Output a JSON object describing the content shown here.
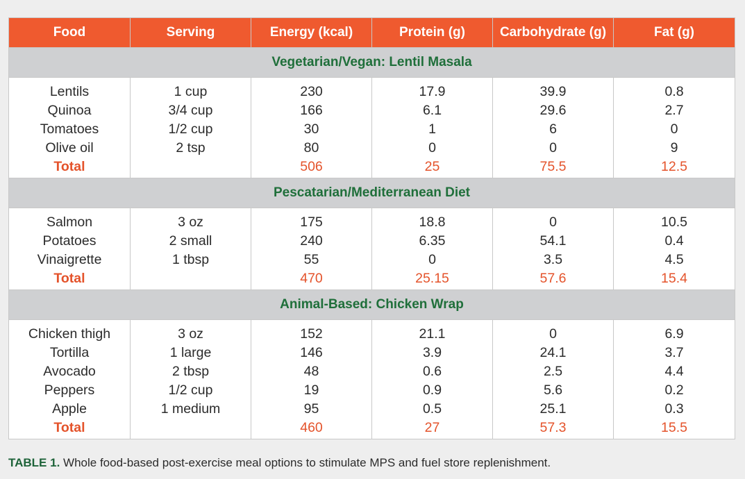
{
  "columns": [
    "Food",
    "Serving",
    "Energy (kcal)",
    "Protein (g)",
    "Carbohydrate (g)",
    "Fat (g)"
  ],
  "sections": [
    {
      "title": "Vegetarian/Vegan: Lentil Masala",
      "columns": [
        [
          "Lentils",
          "Quinoa",
          "Tomatoes",
          "Olive oil"
        ],
        [
          "1 cup",
          "3/4 cup",
          "1/2 cup",
          "2 tsp"
        ],
        [
          "230",
          "166",
          "30",
          "80"
        ],
        [
          "17.9",
          "6.1",
          "1",
          "0"
        ],
        [
          "39.9",
          "29.6",
          "6",
          "0"
        ],
        [
          "0.8",
          "2.7",
          "0",
          "9"
        ]
      ],
      "total": [
        "Total",
        "",
        "506",
        "25",
        "75.5",
        "12.5"
      ]
    },
    {
      "title": "Pescatarian/Mediterranean Diet",
      "columns": [
        [
          "Salmon",
          "Potatoes",
          "Vinaigrette"
        ],
        [
          "3 oz",
          "2 small",
          "1 tbsp"
        ],
        [
          "175",
          "240",
          "55"
        ],
        [
          "18.8",
          "6.35",
          "0"
        ],
        [
          "0",
          "54.1",
          "3.5"
        ],
        [
          "10.5",
          "0.4",
          "4.5"
        ]
      ],
      "total": [
        "Total",
        "",
        "470",
        "25.15",
        "57.6",
        "15.4"
      ]
    },
    {
      "title": "Animal-Based: Chicken Wrap",
      "columns": [
        [
          "Chicken thigh",
          "Tortilla",
          "Avocado",
          "Peppers",
          "Apple"
        ],
        [
          "3 oz",
          "1 large",
          "2 tbsp",
          "1/2 cup",
          "1 medium"
        ],
        [
          "152",
          "146",
          "48",
          "19",
          "95"
        ],
        [
          "21.1",
          "3.9",
          "0.6",
          "0.9",
          "0.5"
        ],
        [
          "0",
          "24.1",
          "2.5",
          "5.6",
          "25.1"
        ],
        [
          "6.9",
          "3.7",
          "4.4",
          "0.2",
          "0.3"
        ]
      ],
      "total": [
        "Total",
        "",
        "460",
        "27",
        "57.3",
        "15.5"
      ]
    }
  ],
  "caption": {
    "label": "TABLE 1.",
    "text": " Whole food-based post-exercise meal options to stimulate MPS and fuel store replenishment."
  },
  "colors": {
    "header_bg": "#ef5a2f",
    "section_bg": "#cfd0d2",
    "section_text": "#1f6f3a",
    "total_text": "#e4532b",
    "caption_label": "#1e6339"
  }
}
